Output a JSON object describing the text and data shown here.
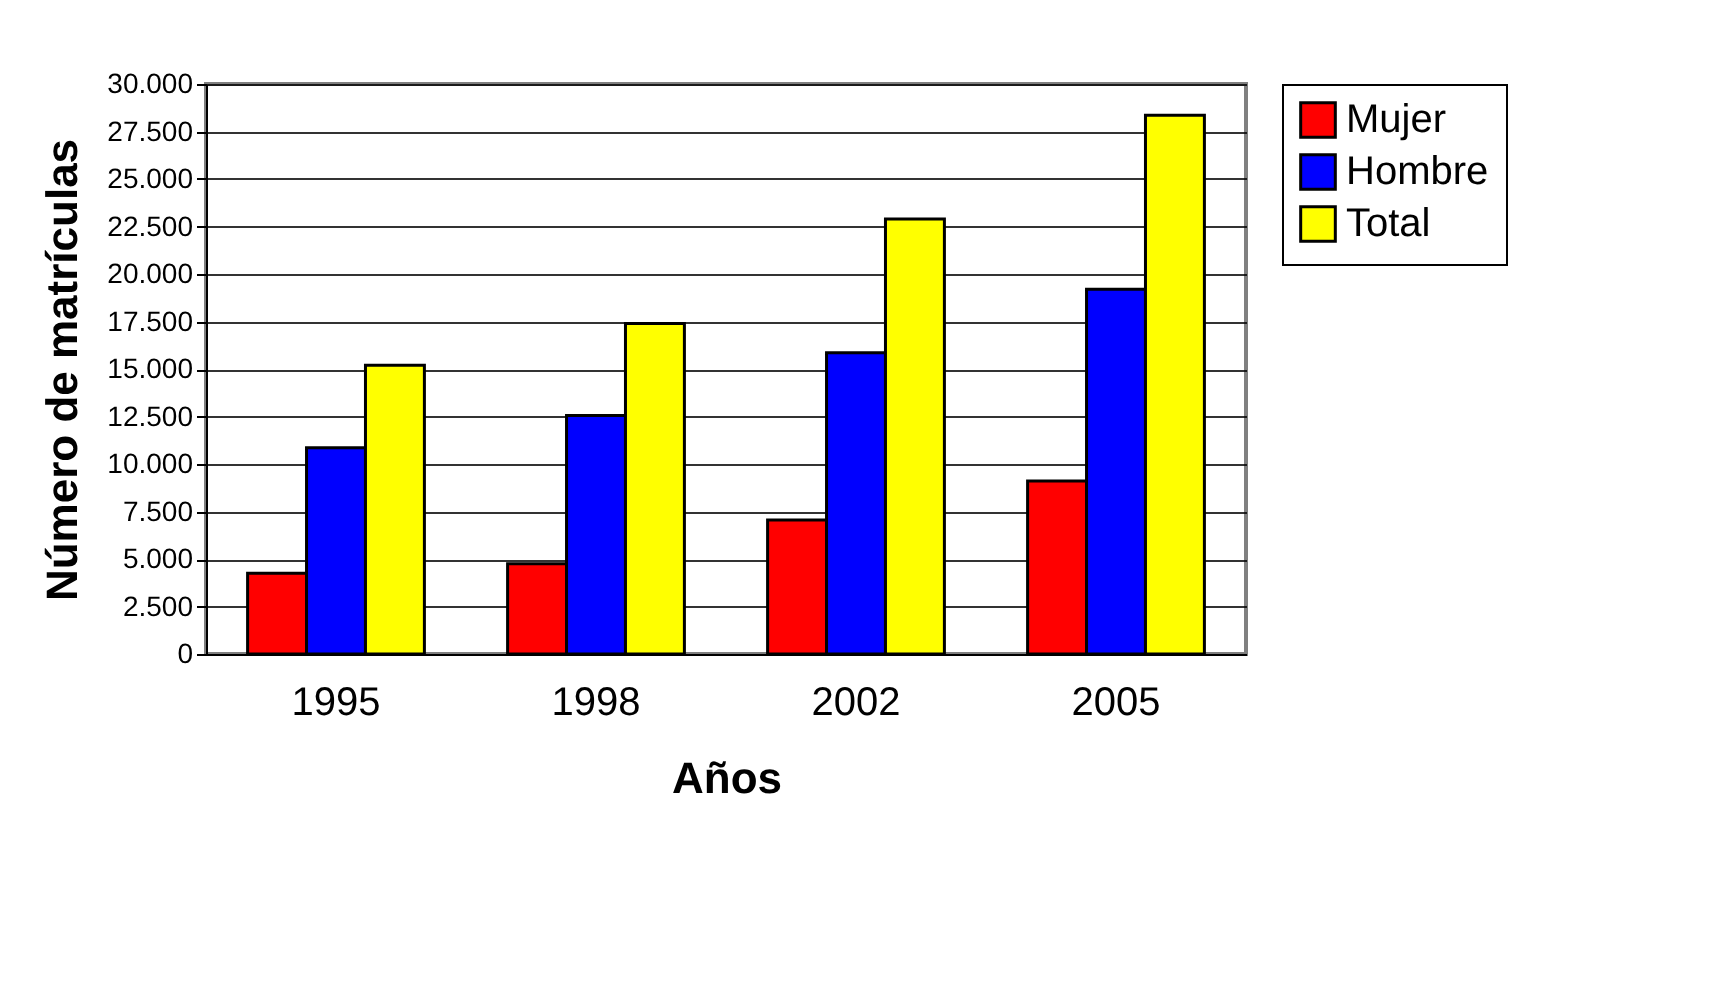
{
  "chart_data": {
    "type": "bar",
    "xlabel": "Años",
    "ylabel": "Número de matrículas",
    "categories": [
      "1995",
      "1998",
      "2002",
      "2005"
    ],
    "series": [
      {
        "name": "Mujer",
        "color": "#ff0000",
        "values": [
          4250,
          4750,
          7050,
          9100
        ]
      },
      {
        "name": "Hombre",
        "color": "#0000ff",
        "values": [
          10850,
          12550,
          15850,
          19200
        ]
      },
      {
        "name": "Total",
        "color": "#ffff00",
        "values": [
          15200,
          17400,
          22900,
          28350
        ]
      }
    ],
    "ylim": [
      0,
      30000
    ],
    "yticks": [
      0,
      {
        "value": 2500,
        "label": "2.500"
      },
      {
        "value": 5000,
        "label": "5.000"
      },
      {
        "value": 7500,
        "label": "7.500"
      },
      {
        "value": 10000,
        "label": "10.000"
      },
      {
        "value": 12500,
        "label": "12.500"
      },
      {
        "value": 15000,
        "label": "15.000"
      },
      {
        "value": 17500,
        "label": "17.500"
      },
      {
        "value": 20000,
        "label": "20.000"
      },
      {
        "value": 22500,
        "label": "22.500"
      },
      {
        "value": 25000,
        "label": "25.000"
      },
      {
        "value": 27500,
        "label": "27.500"
      },
      {
        "value": 30000,
        "label": "30.000"
      }
    ],
    "grid": "y",
    "legend": "right"
  }
}
